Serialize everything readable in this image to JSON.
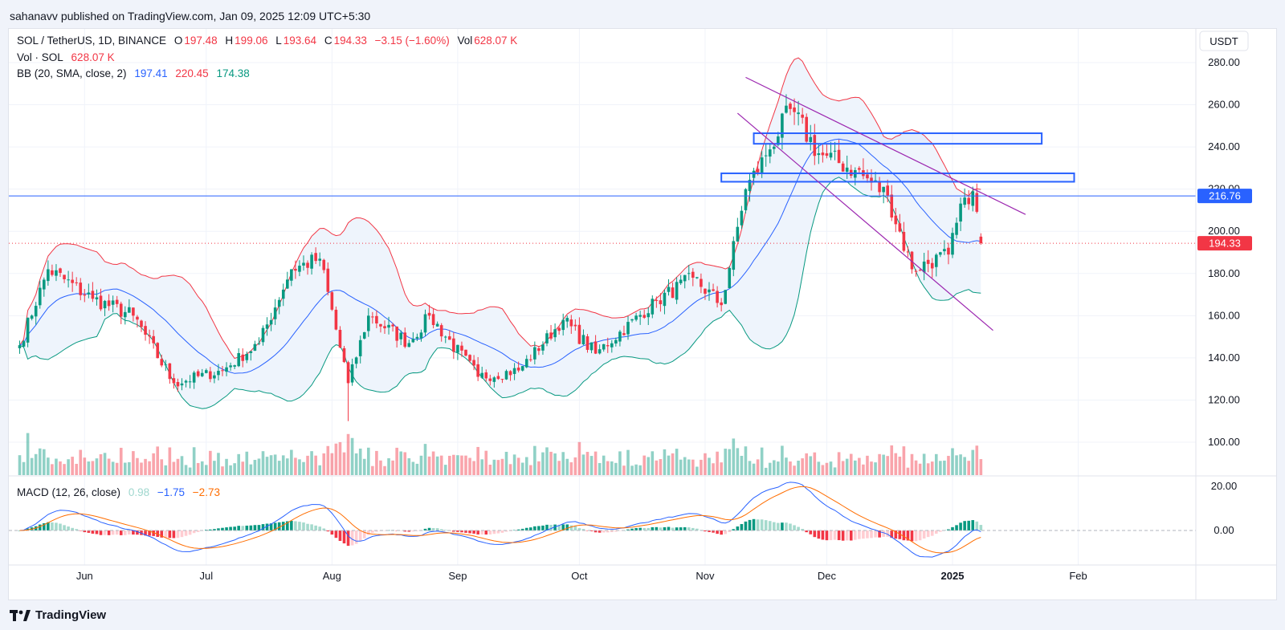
{
  "header": {
    "publish_note": "sahanavv published on TradingView.com, Jan 09, 2025 12:09 UTC+5:30"
  },
  "legend": {
    "symbol": "SOL / TetherUS, 1D, BINANCE",
    "o_label": "O",
    "o_value": "197.48",
    "h_label": "H",
    "h_value": "199.06",
    "l_label": "L",
    "l_value": "193.64",
    "c_label": "C",
    "c_value": "194.33",
    "change": "−3.15 (−1.60%)",
    "vol_label": "Vol",
    "vol_value": "628.07 K"
  },
  "vol_legend": {
    "label": "Vol · SOL",
    "value": "628.07 K"
  },
  "bb_legend": {
    "label": "BB (20, SMA, close, 2)",
    "basis": "197.41",
    "upper": "220.45",
    "lower": "174.38"
  },
  "macd_legend": {
    "label": "MACD (12, 26, close)",
    "hist": "0.98",
    "macd": "−1.75",
    "signal": "−2.73"
  },
  "colors": {
    "up": "#089981",
    "down": "#f23645",
    "basis": "#2962ff",
    "upper": "#f23645",
    "lower": "#089981",
    "trend": "#9c27b0",
    "macd": "#2962ff",
    "signal": "#ff6d00",
    "fill": "#eef4fc"
  },
  "price_axis": {
    "currency": "USDT",
    "ticks": [
      "280.00",
      "260.00",
      "240.00",
      "220.00",
      "200.00",
      "180.00",
      "160.00",
      "140.00",
      "120.00",
      "100.00"
    ],
    "horizontal_line_label": "216.76",
    "last_price_label": "194.33"
  },
  "macd_axis": {
    "ticks": [
      "20.00",
      "0.00"
    ]
  },
  "time_axis": {
    "labels": [
      "Jun",
      "Jul",
      "Aug",
      "Sep",
      "Oct",
      "Nov",
      "Dec",
      "2025",
      "Feb"
    ]
  },
  "footer": {
    "brand": "TradingView"
  },
  "chart_data": {
    "type": "candlestick",
    "symbol": "SOL / TetherUS",
    "interval": "1D",
    "last_price": 194.33,
    "horizontal_line": 216.76,
    "resistance_zones": [
      [
        223.5,
        227.5
      ],
      [
        241.5,
        246.5
      ]
    ],
    "key_closes": [
      [
        "May 16",
        146
      ],
      [
        "May 23",
        182
      ],
      [
        "Jun 03",
        168
      ],
      [
        "Jun 13",
        160
      ],
      [
        "Jun 23",
        128
      ],
      [
        "Jul 05",
        134
      ],
      [
        "Jul 14",
        147
      ],
      [
        "Jul 22",
        182
      ],
      [
        "Jul 29",
        187
      ],
      [
        "Aug 05",
        128
      ],
      [
        "Aug 10",
        160
      ],
      [
        "Aug 20",
        147
      ],
      [
        "Aug 25",
        160
      ],
      [
        "Sep 06",
        131
      ],
      [
        "Sep 16",
        134
      ],
      [
        "Sep 27",
        158
      ],
      [
        "Oct 05",
        142
      ],
      [
        "Oct 20",
        167
      ],
      [
        "Oct 29",
        178
      ],
      [
        "Nov 05",
        165
      ],
      [
        "Nov 11",
        220
      ],
      [
        "Nov 16",
        236
      ],
      [
        "Nov 22",
        258
      ],
      [
        "Nov 29",
        237
      ],
      [
        "Dec 08",
        229
      ],
      [
        "Dec 16",
        217
      ],
      [
        "Dec 22",
        182
      ],
      [
        "Dec 31",
        189
      ],
      [
        "Jan 04",
        216
      ],
      [
        "Jan 06",
        219
      ],
      [
        "Jan 08",
        194.33
      ]
    ]
  }
}
